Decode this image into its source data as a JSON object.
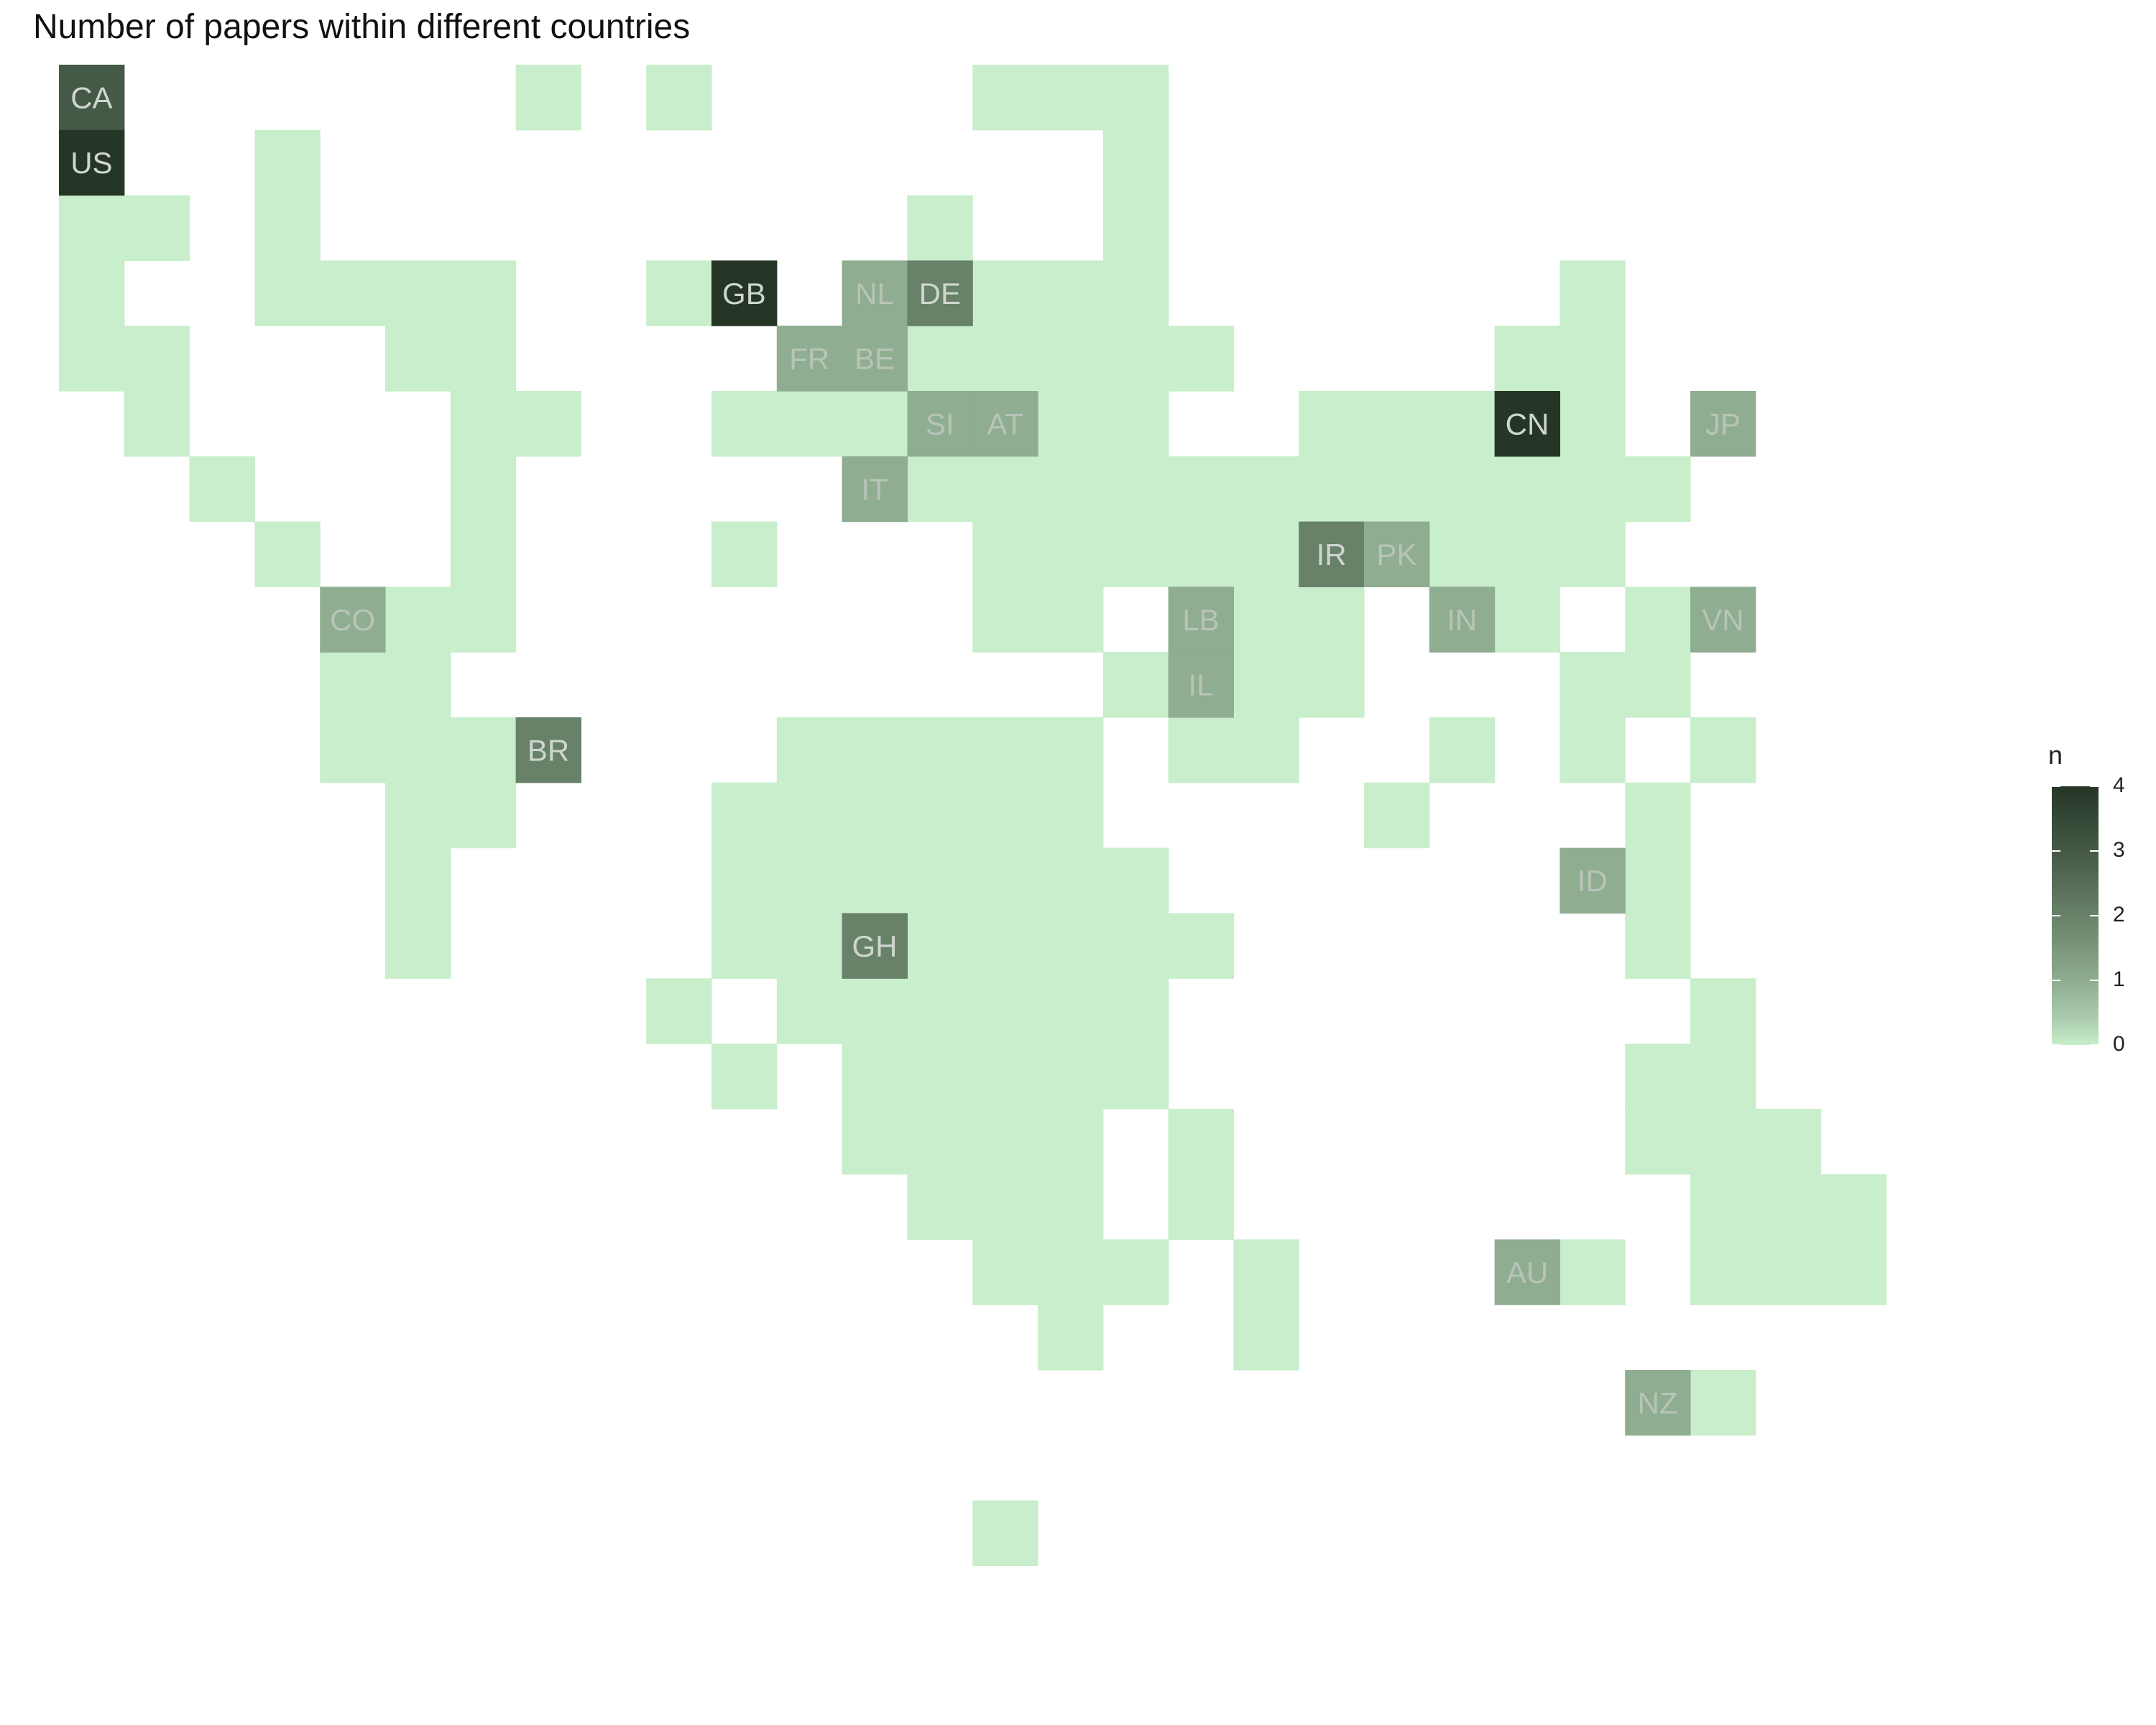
{
  "title": "Number of papers within different countries",
  "colors": {
    "low": "#c8eecb",
    "high": "#263626",
    "label_on_dark": "#cfd6cf",
    "label_on_light": "#b8c4b8"
  },
  "legend": {
    "title": "n",
    "min": 0,
    "max": 4,
    "ticks": [
      "0",
      "1",
      "2",
      "3",
      "4"
    ]
  },
  "map": {
    "columns": 28,
    "rows": 23,
    "empty_rows": [
      "..",
      "     X X",
      "",
      "",
      "",
      "",
      "",
      "",
      "",
      "",
      "",
      "",
      "",
      "",
      "",
      "",
      "",
      "",
      "",
      "",
      "",
      "",
      ""
    ],
    "cells": [
      [
        1,
        1
      ],
      [
        8,
        1
      ],
      [
        10,
        1
      ],
      [
        15,
        1
      ],
      [
        16,
        1
      ],
      [
        17,
        1
      ],
      [
        1,
        2
      ],
      [
        4,
        2
      ],
      [
        17,
        2
      ],
      [
        1,
        3
      ],
      [
        2,
        3
      ],
      [
        4,
        3
      ],
      [
        14,
        3
      ],
      [
        17,
        3
      ],
      [
        1,
        4
      ],
      [
        4,
        4
      ],
      [
        5,
        4
      ],
      [
        6,
        4
      ],
      [
        7,
        4
      ],
      [
        10,
        4
      ],
      [
        11,
        4
      ],
      [
        13,
        4
      ],
      [
        14,
        4
      ],
      [
        15,
        4
      ],
      [
        16,
        4
      ],
      [
        17,
        4
      ],
      [
        24,
        4
      ],
      [
        1,
        5
      ],
      [
        2,
        5
      ],
      [
        6,
        5
      ],
      [
        7,
        5
      ],
      [
        12,
        5
      ],
      [
        13,
        5
      ],
      [
        14,
        5
      ],
      [
        15,
        5
      ],
      [
        16,
        5
      ],
      [
        17,
        5
      ],
      [
        18,
        5
      ],
      [
        23,
        5
      ],
      [
        24,
        5
      ],
      [
        2,
        6
      ],
      [
        7,
        6
      ],
      [
        8,
        6
      ],
      [
        11,
        6
      ],
      [
        12,
        6
      ],
      [
        13,
        6
      ],
      [
        14,
        6
      ],
      [
        15,
        6
      ],
      [
        16,
        6
      ],
      [
        17,
        6
      ],
      [
        20,
        6
      ],
      [
        21,
        6
      ],
      [
        22,
        6
      ],
      [
        23,
        6
      ],
      [
        24,
        6
      ],
      [
        26,
        6
      ],
      [
        3,
        7
      ],
      [
        7,
        7
      ],
      [
        13,
        7
      ],
      [
        14,
        7
      ],
      [
        15,
        7
      ],
      [
        16,
        7
      ],
      [
        17,
        7
      ],
      [
        18,
        7
      ],
      [
        19,
        7
      ],
      [
        20,
        7
      ],
      [
        21,
        7
      ],
      [
        22,
        7
      ],
      [
        23,
        7
      ],
      [
        24,
        7
      ],
      [
        25,
        7
      ],
      [
        4,
        8
      ],
      [
        7,
        8
      ],
      [
        11,
        8
      ],
      [
        15,
        8
      ],
      [
        16,
        8
      ],
      [
        17,
        8
      ],
      [
        18,
        8
      ],
      [
        19,
        8
      ],
      [
        20,
        8
      ],
      [
        21,
        8
      ],
      [
        22,
        8
      ],
      [
        23,
        8
      ],
      [
        24,
        8
      ],
      [
        5,
        9
      ],
      [
        6,
        9
      ],
      [
        7,
        9
      ],
      [
        15,
        9
      ],
      [
        16,
        9
      ],
      [
        18,
        9
      ],
      [
        19,
        9
      ],
      [
        20,
        9
      ],
      [
        22,
        9
      ],
      [
        23,
        9
      ],
      [
        25,
        9
      ],
      [
        26,
        9
      ],
      [
        5,
        10
      ],
      [
        6,
        10
      ],
      [
        17,
        10
      ],
      [
        18,
        10
      ],
      [
        19,
        10
      ],
      [
        20,
        10
      ],
      [
        24,
        10
      ],
      [
        25,
        10
      ],
      [
        5,
        11
      ],
      [
        6,
        11
      ],
      [
        7,
        11
      ],
      [
        8,
        11
      ],
      [
        12,
        11
      ],
      [
        13,
        11
      ],
      [
        14,
        11
      ],
      [
        15,
        11
      ],
      [
        16,
        11
      ],
      [
        18,
        11
      ],
      [
        19,
        11
      ],
      [
        22,
        11
      ],
      [
        24,
        11
      ],
      [
        26,
        11
      ],
      [
        6,
        12
      ],
      [
        7,
        12
      ],
      [
        11,
        12
      ],
      [
        12,
        12
      ],
      [
        13,
        12
      ],
      [
        14,
        12
      ],
      [
        15,
        12
      ],
      [
        16,
        12
      ],
      [
        21,
        12
      ],
      [
        25,
        12
      ],
      [
        6,
        13
      ],
      [
        11,
        13
      ],
      [
        12,
        13
      ],
      [
        13,
        13
      ],
      [
        14,
        13
      ],
      [
        15,
        13
      ],
      [
        16,
        13
      ],
      [
        17,
        13
      ],
      [
        24,
        13
      ],
      [
        25,
        13
      ],
      [
        6,
        14
      ],
      [
        11,
        14
      ],
      [
        12,
        14
      ],
      [
        13,
        14
      ],
      [
        14,
        14
      ],
      [
        15,
        14
      ],
      [
        16,
        14
      ],
      [
        17,
        14
      ],
      [
        18,
        14
      ],
      [
        25,
        14
      ],
      [
        10,
        15
      ],
      [
        12,
        15
      ],
      [
        13,
        15
      ],
      [
        14,
        15
      ],
      [
        15,
        15
      ],
      [
        16,
        15
      ],
      [
        17,
        15
      ],
      [
        26,
        15
      ],
      [
        11,
        16
      ],
      [
        13,
        16
      ],
      [
        14,
        16
      ],
      [
        15,
        16
      ],
      [
        16,
        16
      ],
      [
        17,
        16
      ],
      [
        25,
        16
      ],
      [
        26,
        16
      ],
      [
        13,
        17
      ],
      [
        14,
        17
      ],
      [
        15,
        17
      ],
      [
        16,
        17
      ],
      [
        18,
        17
      ],
      [
        25,
        17
      ],
      [
        26,
        17
      ],
      [
        27,
        17
      ],
      [
        14,
        18
      ],
      [
        15,
        18
      ],
      [
        16,
        18
      ],
      [
        18,
        18
      ],
      [
        26,
        18
      ],
      [
        27,
        18
      ],
      [
        28,
        18
      ],
      [
        15,
        19
      ],
      [
        16,
        19
      ],
      [
        17,
        19
      ],
      [
        19,
        19
      ],
      [
        24,
        19
      ],
      [
        26,
        19
      ],
      [
        27,
        19
      ],
      [
        28,
        19
      ],
      [
        16,
        20
      ],
      [
        19,
        20
      ],
      [
        26,
        21
      ],
      [
        15,
        23
      ]
    ],
    "countries": [
      {
        "code": "CA",
        "col": 1,
        "row": 1,
        "n": 3
      },
      {
        "code": "US",
        "col": 1,
        "row": 2,
        "n": 4
      },
      {
        "code": "GB",
        "col": 11,
        "row": 4,
        "n": 4
      },
      {
        "code": "NL",
        "col": 13,
        "row": 4,
        "n": 1
      },
      {
        "code": "DE",
        "col": 14,
        "row": 4,
        "n": 2
      },
      {
        "code": "FR",
        "col": 12,
        "row": 5,
        "n": 1
      },
      {
        "code": "BE",
        "col": 13,
        "row": 5,
        "n": 1
      },
      {
        "code": "SI",
        "col": 14,
        "row": 6,
        "n": 1
      },
      {
        "code": "AT",
        "col": 15,
        "row": 6,
        "n": 1
      },
      {
        "code": "CN",
        "col": 23,
        "row": 6,
        "n": 4
      },
      {
        "code": "JP",
        "col": 26,
        "row": 6,
        "n": 1
      },
      {
        "code": "IT",
        "col": 13,
        "row": 7,
        "n": 1
      },
      {
        "code": "IR",
        "col": 20,
        "row": 8,
        "n": 2
      },
      {
        "code": "PK",
        "col": 21,
        "row": 8,
        "n": 1
      },
      {
        "code": "CO",
        "col": 5,
        "row": 9,
        "n": 1
      },
      {
        "code": "LB",
        "col": 18,
        "row": 9,
        "n": 1
      },
      {
        "code": "IN",
        "col": 22,
        "row": 9,
        "n": 1
      },
      {
        "code": "VN",
        "col": 26,
        "row": 9,
        "n": 1
      },
      {
        "code": "IL",
        "col": 18,
        "row": 10,
        "n": 1
      },
      {
        "code": "BR",
        "col": 8,
        "row": 11,
        "n": 2
      },
      {
        "code": "ID",
        "col": 24,
        "row": 13,
        "n": 1
      },
      {
        "code": "GH",
        "col": 13,
        "row": 14,
        "n": 2
      },
      {
        "code": "AU",
        "col": 23,
        "row": 19,
        "n": 1
      },
      {
        "code": "NZ",
        "col": 25,
        "row": 21,
        "n": 1
      }
    ]
  }
}
